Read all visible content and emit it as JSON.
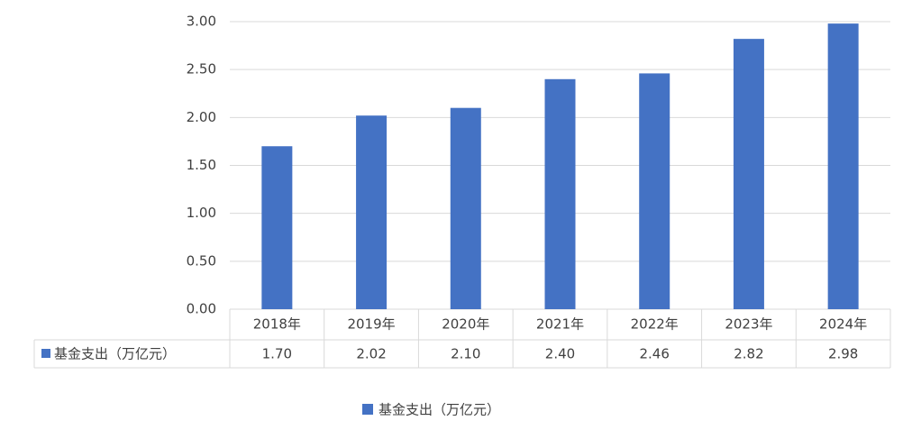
{
  "chart_data": {
    "type": "bar",
    "categories": [
      "2018年",
      "2019年",
      "2020年",
      "2021年",
      "2022年",
      "2023年",
      "2024年"
    ],
    "series": [
      {
        "name": "基金支出（万亿元）",
        "color": "#4472c4",
        "values": [
          1.7,
          2.02,
          2.1,
          2.4,
          2.46,
          2.82,
          2.98
        ],
        "value_labels": [
          "1.70",
          "2.02",
          "2.10",
          "2.40",
          "2.46",
          "2.82",
          "2.98"
        ]
      }
    ],
    "ylim": [
      0,
      3
    ],
    "yticks": [
      {
        "value": 0,
        "label": "0.00"
      },
      {
        "value": 0.5,
        "label": "0.50"
      },
      {
        "value": 1,
        "label": "1.00"
      },
      {
        "value": 1.5,
        "label": "1.50"
      },
      {
        "value": 2,
        "label": "2.00"
      },
      {
        "value": 2.5,
        "label": "2.50"
      },
      {
        "value": 3,
        "label": "3.00"
      }
    ],
    "grid": true,
    "data_table": true,
    "legend": "bottom"
  }
}
